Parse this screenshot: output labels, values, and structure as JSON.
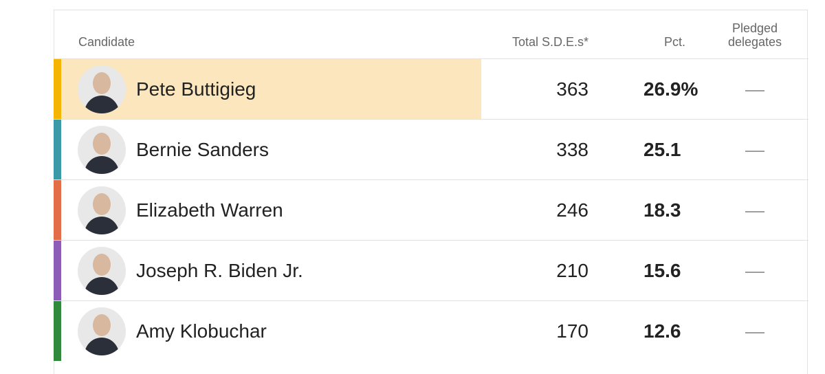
{
  "table": {
    "headers": [
      "Candidate",
      "Total S.D.E.s*",
      "Pct.",
      "Pledged delegates"
    ],
    "rows": [
      {
        "name": "Pete Buttigieg",
        "sdes": "363",
        "pct": "26.9%",
        "delegates": "—",
        "color": "#f5b400"
      },
      {
        "name": "Bernie Sanders",
        "sdes": "338",
        "pct": "25.1",
        "delegates": "—",
        "color": "#3a9aa8"
      },
      {
        "name": "Elizabeth Warren",
        "sdes": "246",
        "pct": "18.3",
        "delegates": "—",
        "color": "#e26d47"
      },
      {
        "name": "Joseph R. Biden Jr.",
        "sdes": "210",
        "pct": "15.6",
        "delegates": "—",
        "color": "#8d5cb8"
      },
      {
        "name": "Amy Klobuchar",
        "sdes": "170",
        "pct": "12.6",
        "delegates": "—",
        "color": "#2f8a3c"
      }
    ]
  }
}
